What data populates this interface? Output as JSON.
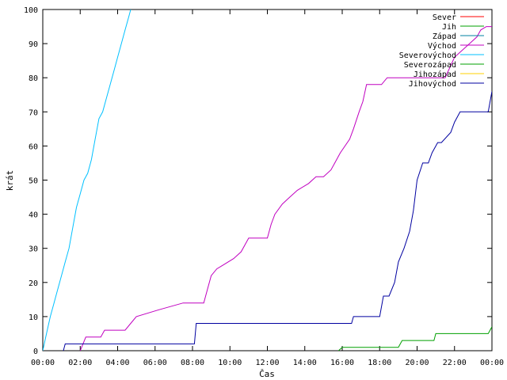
{
  "chart_data": {
    "type": "line",
    "xlabel": "Čas",
    "ylabel": "krát",
    "xlim": [
      0,
      24
    ],
    "ylim": [
      0,
      100
    ],
    "grid": false,
    "legend_position": "top-right",
    "x_ticks": [
      {
        "value": 0,
        "label": "00:00"
      },
      {
        "value": 2,
        "label": "02:00"
      },
      {
        "value": 4,
        "label": "04:00"
      },
      {
        "value": 6,
        "label": "06:00"
      },
      {
        "value": 8,
        "label": "08:00"
      },
      {
        "value": 10,
        "label": "10:00"
      },
      {
        "value": 12,
        "label": "12:00"
      },
      {
        "value": 14,
        "label": "14:00"
      },
      {
        "value": 16,
        "label": "16:00"
      },
      {
        "value": 18,
        "label": "18:00"
      },
      {
        "value": 20,
        "label": "20:00"
      },
      {
        "value": 22,
        "label": "22:00"
      },
      {
        "value": 24,
        "label": "00:00"
      }
    ],
    "y_ticks": [
      0,
      10,
      20,
      30,
      40,
      50,
      60,
      70,
      80,
      90,
      100
    ],
    "series": [
      {
        "name": "Sever",
        "color": "#ff0000",
        "x": [],
        "y": []
      },
      {
        "name": "Jih",
        "color": "#00a000",
        "x": [
          15.8,
          16.0,
          19.0,
          19.2,
          20.9,
          21.0,
          23.8,
          24.0
        ],
        "y": [
          0,
          1,
          1,
          3,
          3,
          5,
          5,
          7
        ]
      },
      {
        "name": "Západ",
        "color": "#0080a0",
        "x": [],
        "y": []
      },
      {
        "name": "Východ",
        "color": "#c000c0",
        "x": [
          2.0,
          2.3,
          3.1,
          3.3,
          4.4,
          4.7,
          5.0,
          6.2,
          7.5,
          8.6,
          8.8,
          9.0,
          9.3,
          9.6,
          10.2,
          10.6,
          11.0,
          12.0,
          12.2,
          12.4,
          12.8,
          13.2,
          13.6,
          14.2,
          14.6,
          15.0,
          15.4,
          15.6,
          15.9,
          16.4,
          16.6,
          16.9,
          17.1,
          17.3,
          18.1,
          18.4,
          18.8,
          19.5,
          20.4,
          21.5,
          22.0,
          22.4,
          22.8,
          23.2,
          23.4,
          23.7,
          24.0
        ],
        "y": [
          0,
          4,
          4,
          6,
          6,
          8,
          10,
          12,
          14,
          14,
          18,
          22,
          24,
          25,
          27,
          29,
          33,
          33,
          37,
          40,
          43,
          45,
          47,
          49,
          51,
          51,
          53,
          55,
          58,
          62,
          65,
          70,
          73,
          78,
          78,
          80,
          80,
          80,
          80,
          80,
          86,
          88,
          90,
          92,
          94,
          95,
          95
        ]
      },
      {
        "name": "Severovýchod",
        "color": "#00c0ff",
        "x": [
          0.0,
          0.2,
          0.4,
          0.6,
          0.8,
          1.0,
          1.2,
          1.4,
          1.6,
          1.8,
          2.0,
          2.2,
          2.4,
          2.6,
          2.8,
          3.0,
          3.2,
          3.4,
          3.6,
          3.8,
          4.0,
          4.2,
          4.4,
          4.6,
          4.7
        ],
        "y": [
          0,
          5,
          10,
          14,
          18,
          22,
          26,
          30,
          36,
          42,
          46,
          50,
          52,
          56,
          62,
          68,
          70,
          74,
          78,
          82,
          86,
          90,
          94,
          98,
          100
        ]
      },
      {
        "name": "Severozápad",
        "color": "#00a000",
        "x": [],
        "y": []
      },
      {
        "name": "Jihozápad",
        "color": "#ffd000",
        "x": [],
        "y": []
      },
      {
        "name": "Jihovýchod",
        "color": "#0000a0",
        "x": [
          1.1,
          1.2,
          8.1,
          8.2,
          16.5,
          16.6,
          18.0,
          18.2,
          18.5,
          18.8,
          19.0,
          19.3,
          19.6,
          19.8,
          20.0,
          20.3,
          20.6,
          20.8,
          21.1,
          21.3,
          21.8,
          22.0,
          22.3,
          22.6,
          23.8,
          24.0
        ],
        "y": [
          0,
          2,
          2,
          8,
          8,
          10,
          10,
          16,
          16,
          20,
          26,
          30,
          35,
          41,
          50,
          55,
          55,
          58,
          61,
          61,
          64,
          67,
          70,
          70,
          70,
          76
        ]
      }
    ]
  }
}
